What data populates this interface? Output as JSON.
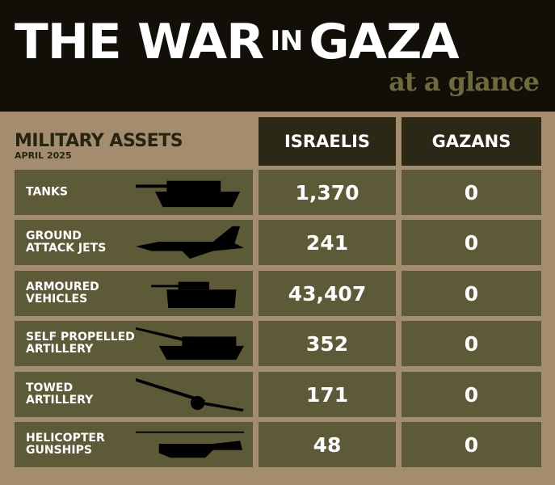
{
  "title": {
    "part1": "THE WAR",
    "part2": "IN",
    "part3": "GAZA",
    "subtitle": "at a glance"
  },
  "table": {
    "heading": "MILITARY ASSETS",
    "date": "APRIL 2025",
    "columns": [
      "ISRAELIS",
      "GAZANS"
    ],
    "rows": [
      {
        "label": "TANKS",
        "icon": "tank-icon",
        "israelis": "1,370",
        "gazans": "0"
      },
      {
        "label": "GROUND\nATTACK JETS",
        "icon": "jet-icon",
        "israelis": "241",
        "gazans": "0"
      },
      {
        "label": "ARMOURED\nVEHICLES",
        "icon": "armoured-vehicle-icon",
        "israelis": "43,407",
        "gazans": "0"
      },
      {
        "label": "SELF PROPELLED\nARTILLERY",
        "icon": "self-propelled-artillery-icon",
        "israelis": "352",
        "gazans": "0"
      },
      {
        "label": "TOWED\nARTILLERY",
        "icon": "towed-artillery-icon",
        "israelis": "171",
        "gazans": "0"
      },
      {
        "label": "HELICOPTER\nGUNSHIPS",
        "icon": "helicopter-icon",
        "israelis": "48",
        "gazans": "0"
      }
    ]
  },
  "colors": {
    "background": "#a38d6e",
    "title_bar": "#120f09",
    "header_cell": "#2b2916",
    "row_cell": "#5d5b37",
    "subtitle": "#6d6a3b"
  }
}
